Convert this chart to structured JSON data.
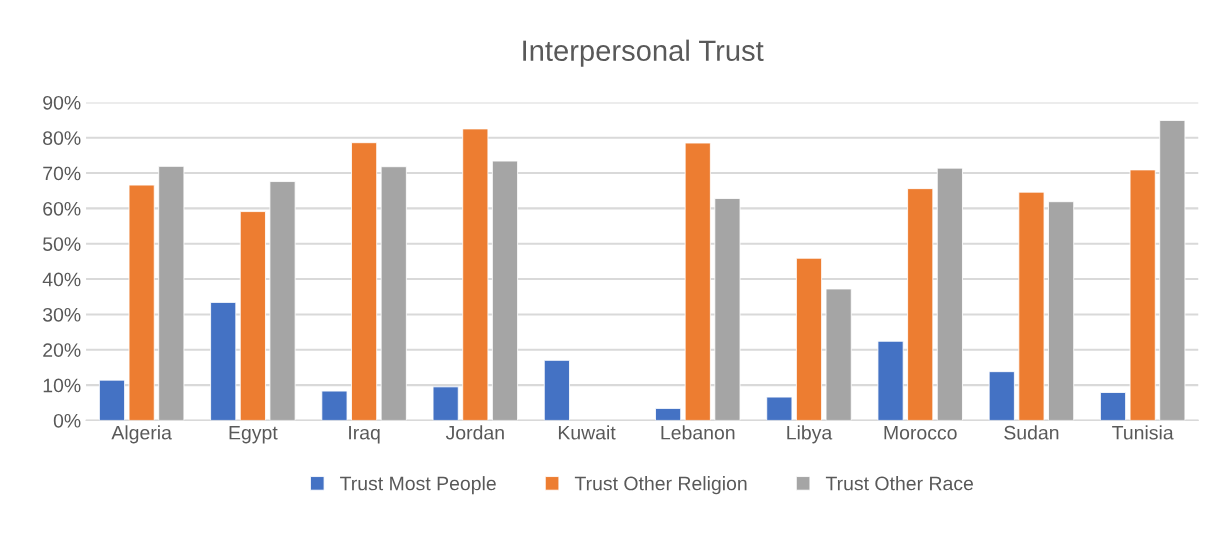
{
  "chart_data": {
    "type": "bar",
    "title": "Interpersonal Trust",
    "categories": [
      "Algeria",
      "Egypt",
      "Iraq",
      "Jordan",
      "Kuwait",
      "Lebanon",
      "Libya",
      "Morocco",
      "Sudan",
      "Tunisia"
    ],
    "series": [
      {
        "name": "Trust Most People",
        "color": "#4472c4",
        "values": [
          11.4,
          33.4,
          8.3,
          9.5,
          17.0,
          3.4,
          6.6,
          22.4,
          13.8,
          7.9
        ]
      },
      {
        "name": "Trust Other Religion",
        "color": "#ed7d31",
        "values": [
          66.6,
          59.1,
          78.6,
          82.5,
          null,
          78.5,
          45.9,
          65.6,
          64.6,
          70.9
        ]
      },
      {
        "name": "Trust Other Race",
        "color": "#a5a5a5",
        "values": [
          71.9,
          67.6,
          71.8,
          73.4,
          null,
          62.8,
          37.2,
          71.4,
          61.9,
          84.9
        ]
      }
    ],
    "ylim": [
      0,
      90
    ],
    "yticks": [
      {
        "value": 0,
        "label": "0%"
      },
      {
        "value": 10,
        "label": "10%"
      },
      {
        "value": 20,
        "label": "20%"
      },
      {
        "value": 30,
        "label": "30%"
      },
      {
        "value": 40,
        "label": "40%"
      },
      {
        "value": 50,
        "label": "50%"
      },
      {
        "value": 60,
        "label": "60%"
      },
      {
        "value": 70,
        "label": "70%"
      },
      {
        "value": 80,
        "label": "80%"
      },
      {
        "value": 90,
        "label": "90%"
      }
    ],
    "grid": "y",
    "legend": "bottom"
  }
}
